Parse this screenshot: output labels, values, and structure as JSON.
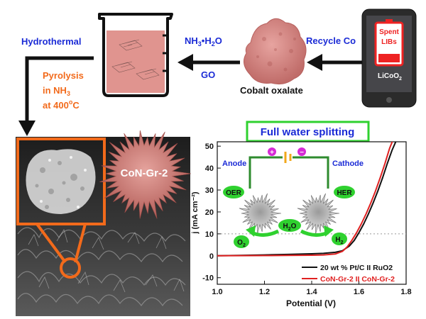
{
  "top": {
    "hydrothermal": "Hydrothermal",
    "pyrolysis": [
      "Pyrolysis",
      "in NH",
      "at 400"
    ],
    "pyrolysis_sub3": "3",
    "pyrolysis_deg": "o",
    "pyrolysis_unit": "C",
    "nh3_label": "NH",
    "nh3_sub": "3",
    "nh3_rest": "•H",
    "nh3_sub2": "2",
    "nh3_o": "O",
    "go_label": "GO",
    "cobalt_oxalate": "Cobalt oxalate",
    "recycle": "Recycle Co",
    "phone_text": [
      "Spent",
      "LIBs"
    ],
    "licoo2": "LiCoO",
    "licoo2_sub": "2"
  },
  "sem": {
    "label": "CoN-Gr-2"
  },
  "chart_title": "Full water splitting",
  "inset": {
    "plus": "+",
    "minus": "−",
    "anode": "Anode",
    "cathode": "Cathode",
    "oer": "OER",
    "her": "HER",
    "o2": "O",
    "o2_sub": "2",
    "h2o": "H",
    "h2o_sub": "2",
    "h2o_o": "O",
    "h2": "H",
    "h2_sub": "2"
  },
  "chart_data": {
    "type": "line",
    "xlabel": "Potential (V)",
    "ylabel": "j (mA cm⁻²)",
    "xlim": [
      1.0,
      1.8
    ],
    "ylim": [
      -13,
      52
    ],
    "xticks": [
      1.0,
      1.2,
      1.4,
      1.6,
      1.8
    ],
    "yticks": [
      -10,
      0,
      10,
      20,
      30,
      40,
      50
    ],
    "reference_line_y": 10,
    "legend_position": "bottom-right",
    "series": [
      {
        "name": "20 wt % Pt/C II RuO2",
        "color": "#111111",
        "x": [
          0.99,
          1.1,
          1.2,
          1.3,
          1.4,
          1.45,
          1.5,
          1.53,
          1.56,
          1.58,
          1.6,
          1.62,
          1.64,
          1.66,
          1.68,
          1.7,
          1.72,
          1.74,
          1.76
        ],
        "y": [
          0.0,
          0.2,
          0.4,
          0.6,
          0.9,
          1.1,
          1.6,
          2.3,
          4.5,
          7.0,
          10.5,
          14.5,
          19.0,
          24.0,
          29.5,
          35.5,
          42.0,
          48.0,
          53.0
        ]
      },
      {
        "name": "CoN-Gr-2 II CoN-Gr-2",
        "color": "#e02020",
        "x": [
          0.99,
          1.1,
          1.2,
          1.3,
          1.4,
          1.45,
          1.5,
          1.53,
          1.55,
          1.57,
          1.59,
          1.61,
          1.63,
          1.65,
          1.67,
          1.69,
          1.71,
          1.73,
          1.745
        ],
        "y": [
          0.0,
          0.05,
          0.1,
          0.15,
          0.25,
          0.4,
          0.8,
          2.0,
          4.0,
          7.0,
          10.5,
          14.5,
          19.0,
          24.0,
          29.5,
          35.5,
          42.0,
          49.0,
          53.0
        ]
      }
    ]
  }
}
